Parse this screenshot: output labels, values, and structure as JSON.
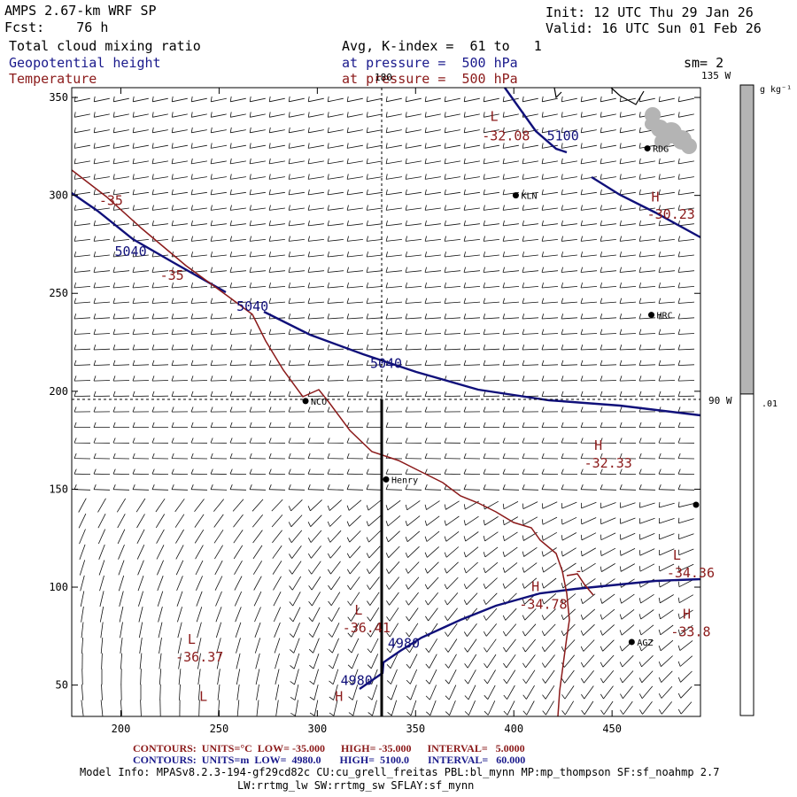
{
  "header": {
    "model": "AMPS 2.67-km WRF SP",
    "fcst_label": "Fcst:",
    "fcst_value": "76 h",
    "init": "Init: 12 UTC Thu 29 Jan 26",
    "valid": "Valid: 16 UTC Sun 01 Feb 26",
    "field1": "Total cloud mixing ratio",
    "field2": "Geopotential height",
    "field3": "Temperature",
    "avg": "Avg, K-index =  61 to   1",
    "pressure2": "at pressure =  500 hPa",
    "pressure3": "at pressure =  500 hPa",
    "sm": "sm= 2"
  },
  "map": {
    "meridian_top": "180",
    "meridian_right_top": "135 W",
    "meridian_right_mid": "90 W",
    "x_ticks": [
      "200",
      "250",
      "300",
      "350",
      "400",
      "450"
    ],
    "y_ticks": [
      "350",
      "300",
      "250",
      "200",
      "150",
      "100",
      "50"
    ],
    "stations": [
      {
        "name": "RDG",
        "x": 468,
        "y": 324
      },
      {
        "name": "KLN",
        "x": 401,
        "y": 300
      },
      {
        "name": "HRC",
        "x": 470,
        "y": 239
      },
      {
        "name": "NCO",
        "x": 294,
        "y": 195
      },
      {
        "name": "Henry",
        "x": 335,
        "y": 155
      },
      {
        "name": "AGZ",
        "x": 460,
        "y": 72
      }
    ],
    "height_labels": [
      {
        "text": "5100",
        "x": 425,
        "y": 328
      },
      {
        "text": "5040",
        "x": 205,
        "y": 269
      },
      {
        "text": "5040",
        "x": 267,
        "y": 241
      },
      {
        "text": "5040",
        "x": 335,
        "y": 212
      },
      {
        "text": "4980",
        "x": 344,
        "y": 69
      },
      {
        "text": "4980",
        "x": 320,
        "y": 50
      }
    ],
    "temp_labels": [
      {
        "text": "L",
        "x": 390,
        "y": 338
      },
      {
        "text": "-32.08",
        "x": 396,
        "y": 328
      },
      {
        "text": "H",
        "x": 472,
        "y": 297
      },
      {
        "text": "-30.23",
        "x": 480,
        "y": 288
      },
      {
        "text": "-35",
        "x": 195,
        "y": 295
      },
      {
        "text": "-35",
        "x": 226,
        "y": 257
      },
      {
        "text": "H",
        "x": 443,
        "y": 170
      },
      {
        "text": "-32.33",
        "x": 448,
        "y": 161
      },
      {
        "text": "L",
        "x": 483,
        "y": 114
      },
      {
        "text": "-34.36",
        "x": 490,
        "y": 105
      },
      {
        "text": "H",
        "x": 411,
        "y": 98
      },
      {
        "text": "-34.78",
        "x": 415,
        "y": 89
      },
      {
        "text": "-",
        "x": 433,
        "y": 106
      },
      {
        "text": "H",
        "x": 488,
        "y": 84
      },
      {
        "text": "-33.8",
        "x": 490,
        "y": 75
      },
      {
        "text": "L",
        "x": 321,
        "y": 86
      },
      {
        "text": "-36.41",
        "x": 325,
        "y": 77
      },
      {
        "text": "L",
        "x": 236,
        "y": 71
      },
      {
        "text": "-36.37",
        "x": 240,
        "y": 62
      },
      {
        "text": "L",
        "x": 242,
        "y": 42
      },
      {
        "text": "H",
        "x": 311,
        "y": 42
      }
    ]
  },
  "colorbar": {
    "unit": "g kg⁻¹",
    "threshold_label": ".01",
    "shaded_fraction_top": 0.49
  },
  "footer": {
    "temp_contours_label": "CONTOURS:",
    "temp_units": "UNITS=°C",
    "temp_low": "LOW= -35.000",
    "temp_high": "HIGH= -35.000",
    "temp_interval": "INTERVAL=   5.0000",
    "hgt_contours_label": "CONTOURS:",
    "hgt_units": "UNITS=m",
    "hgt_low": "LOW=  4980.0",
    "hgt_high": "HIGH=  5100.0",
    "hgt_interval": "INTERVAL=   60.000",
    "model_info_1": "Model Info: MPASv8.2.3-194-gf29cd82c CU:cu_grell_freitas PBL:bl_mynn MP:mp_thompson SF:sf_noahmp 2.7",
    "model_info_2": "LW:rrtmg_lw SW:rrtmg_sw SFLAY:sf_mynn"
  },
  "colors": {
    "height_contour": "#10107a",
    "temp_contour": "#8b1a1a",
    "cloud_shade": "#b4b4b4"
  }
}
